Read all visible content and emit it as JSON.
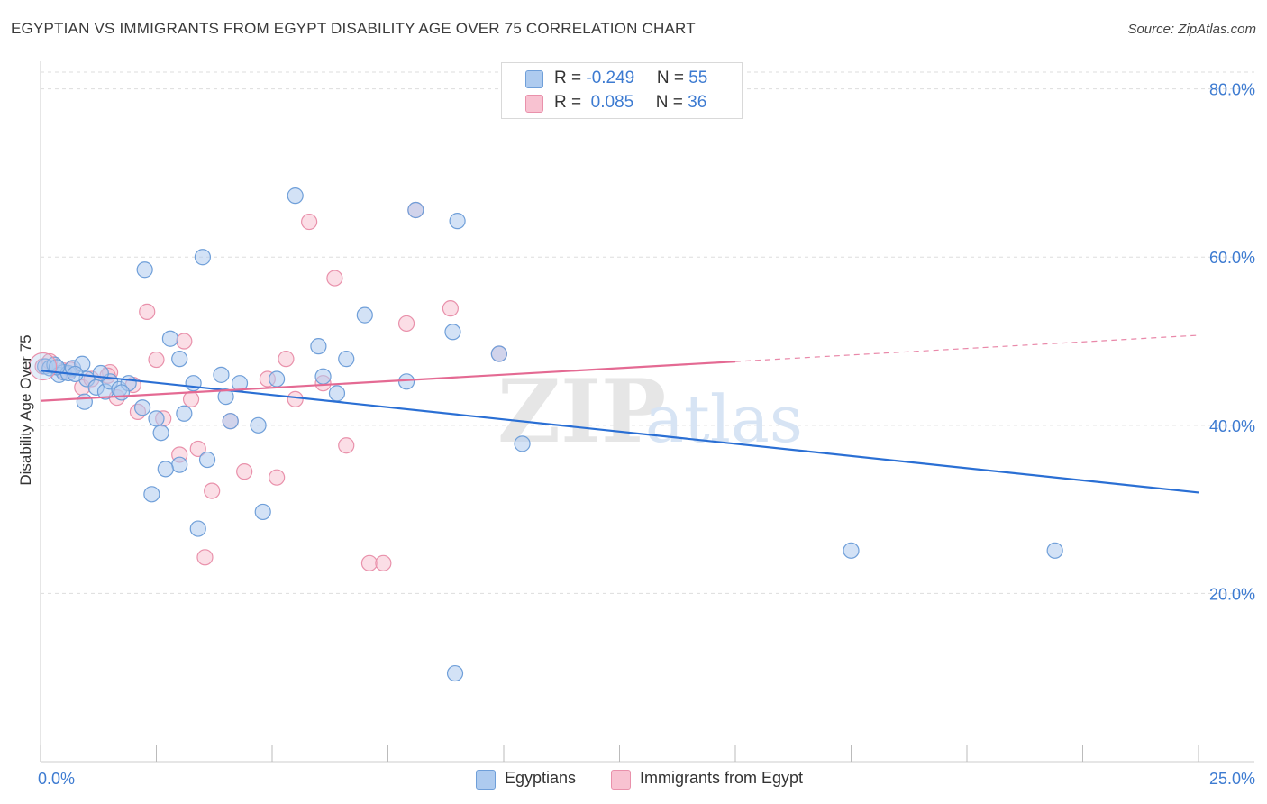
{
  "title": "EGYPTIAN VS IMMIGRANTS FROM EGYPT DISABILITY AGE OVER 75 CORRELATION CHART",
  "source": "Source: ZipAtlas.com",
  "watermark": {
    "zip": "ZIP",
    "atlas": "atlas"
  },
  "legend_top": {
    "row1": {
      "r_label": "R = ",
      "r_value": "-0.249",
      "n_label": "N = ",
      "n_value": "55"
    },
    "row2": {
      "r_label": "R = ",
      "r_value": " 0.085",
      "n_label": "N = ",
      "n_value": "36"
    }
  },
  "legend_bottom": {
    "item1": "Egyptians",
    "item2": "Immigrants from Egypt"
  },
  "colors": {
    "blue_fill": "#aecbef",
    "blue_stroke": "#6f9fd9",
    "blue_line": "#2a6fd4",
    "pink_fill": "#f8c2d1",
    "pink_stroke": "#e991ab",
    "pink_line": "#e46a93",
    "tick_text": "#3d7bd1",
    "grid": "#dddddd"
  },
  "chart_data": {
    "type": "scatter",
    "title": "EGYPTIAN VS IMMIGRANTS FROM EGYPT DISABILITY AGE OVER 75 CORRELATION CHART",
    "xlabel": "",
    "ylabel": "Disability Age Over 75",
    "xlim": [
      0,
      25
    ],
    "ylim": [
      0,
      82
    ],
    "x_ticks": [
      {
        "value": 0,
        "label": "0.0%"
      },
      {
        "value": 25,
        "label": "25.0%"
      }
    ],
    "y_ticks": [
      {
        "value": 20,
        "label": "20.0%"
      },
      {
        "value": 40,
        "label": "40.0%"
      },
      {
        "value": 60,
        "label": "60.0%"
      },
      {
        "value": 80,
        "label": "80.0%"
      }
    ],
    "x_minor_ticks": [
      0,
      2.5,
      5,
      7.5,
      10,
      12.5,
      15,
      17.5,
      20,
      22.5,
      25
    ],
    "series": [
      {
        "name": "Egyptians",
        "color_key": "blue",
        "r": -0.249,
        "n": 55,
        "trend": {
          "x0": 0,
          "y0": 46.5,
          "x1": 25,
          "y1": 32.0,
          "dashed_from": null
        },
        "points": [
          [
            0.1,
            47.0
          ],
          [
            0.2,
            46.8
          ],
          [
            0.3,
            47.2
          ],
          [
            0.4,
            46.0
          ],
          [
            0.5,
            46.3
          ],
          [
            0.6,
            46.2
          ],
          [
            0.7,
            46.8
          ],
          [
            0.9,
            47.3
          ],
          [
            1.0,
            45.5
          ],
          [
            1.2,
            44.5
          ],
          [
            1.4,
            44.0
          ],
          [
            1.5,
            45.2
          ],
          [
            1.7,
            44.3
          ],
          [
            0.95,
            42.8
          ],
          [
            1.9,
            45.0
          ],
          [
            1.75,
            43.9
          ],
          [
            2.2,
            42.1
          ],
          [
            2.5,
            40.8
          ],
          [
            2.6,
            39.1
          ],
          [
            2.8,
            50.3
          ],
          [
            3.0,
            47.9
          ],
          [
            2.25,
            58.5
          ],
          [
            3.5,
            60.0
          ],
          [
            3.3,
            45.0
          ],
          [
            3.9,
            46.0
          ],
          [
            4.3,
            45.0
          ],
          [
            4.1,
            40.5
          ],
          [
            4.0,
            43.4
          ],
          [
            4.7,
            40.0
          ],
          [
            5.1,
            45.5
          ],
          [
            5.5,
            67.3
          ],
          [
            6.0,
            49.4
          ],
          [
            6.1,
            45.8
          ],
          [
            6.4,
            43.8
          ],
          [
            6.6,
            47.9
          ],
          [
            7.0,
            53.1
          ],
          [
            8.1,
            65.6
          ],
          [
            8.9,
            51.1
          ],
          [
            9.0,
            64.3
          ],
          [
            9.9,
            48.5
          ],
          [
            3.1,
            41.4
          ],
          [
            3.0,
            35.3
          ],
          [
            2.7,
            34.8
          ],
          [
            3.6,
            35.9
          ],
          [
            2.4,
            31.8
          ],
          [
            3.4,
            27.7
          ],
          [
            4.8,
            29.7
          ],
          [
            7.9,
            45.2
          ],
          [
            10.4,
            37.8
          ],
          [
            17.5,
            25.1
          ],
          [
            21.9,
            25.1
          ],
          [
            8.95,
            10.5
          ],
          [
            1.3,
            46.2
          ],
          [
            0.35,
            46.9
          ],
          [
            0.75,
            46.1
          ]
        ]
      },
      {
        "name": "Immigrants from Egypt",
        "color_key": "pink",
        "r": 0.085,
        "n": 36,
        "trend": {
          "x0": 0,
          "y0": 42.9,
          "x1": 25,
          "y1": 50.7,
          "dashed_from": 15.0
        },
        "points": [
          [
            0.05,
            47.0
          ],
          [
            0.2,
            47.6
          ],
          [
            0.5,
            46.5
          ],
          [
            0.9,
            44.5
          ],
          [
            1.1,
            45.5
          ],
          [
            1.5,
            46.3
          ],
          [
            1.65,
            43.3
          ],
          [
            2.0,
            44.8
          ],
          [
            2.1,
            41.6
          ],
          [
            2.3,
            53.5
          ],
          [
            2.5,
            47.8
          ],
          [
            2.65,
            40.8
          ],
          [
            3.0,
            36.5
          ],
          [
            3.1,
            50.0
          ],
          [
            3.25,
            43.1
          ],
          [
            3.4,
            37.2
          ],
          [
            3.7,
            32.2
          ],
          [
            3.55,
            24.3
          ],
          [
            4.1,
            40.5
          ],
          [
            4.4,
            34.5
          ],
          [
            4.9,
            45.5
          ],
          [
            5.1,
            33.8
          ],
          [
            5.3,
            47.9
          ],
          [
            5.5,
            43.1
          ],
          [
            5.8,
            64.2
          ],
          [
            6.1,
            45.0
          ],
          [
            6.35,
            57.5
          ],
          [
            6.6,
            37.6
          ],
          [
            7.1,
            23.6
          ],
          [
            7.4,
            23.6
          ],
          [
            7.9,
            52.1
          ],
          [
            8.1,
            65.6
          ],
          [
            8.85,
            53.9
          ],
          [
            9.9,
            48.5
          ],
          [
            1.45,
            45.9
          ],
          [
            0.65,
            46.6
          ]
        ]
      }
    ]
  }
}
